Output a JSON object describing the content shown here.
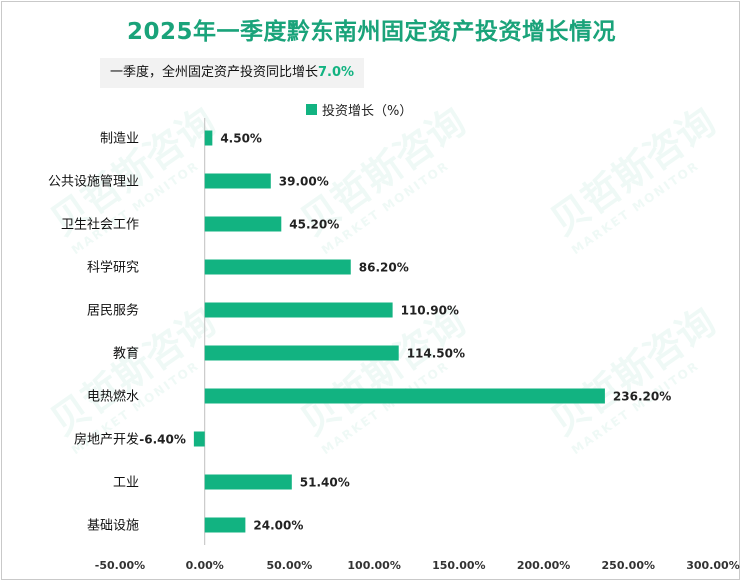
{
  "title": "2025年一季度黔东南州固定资产投资增长情况",
  "subtitle": {
    "prefix": "一季度，全州固定资产投资同比增长",
    "value": "7.0%"
  },
  "colors": {
    "bar": "#12b381",
    "title": "#1aa37a",
    "axis": "#bfbfbf"
  },
  "chart_data": {
    "type": "bar",
    "orientation": "horizontal",
    "title": "2025年一季度黔东南州固定资产投资增长情况",
    "legend": [
      "投资增长（%）"
    ],
    "legend_position": "top",
    "categories": [
      "制造业",
      "公共设施管理业",
      "卫生社会工作",
      "科学研究",
      "居民服务",
      "教育",
      "电热燃水",
      "房地产开发",
      "工业",
      "基础设施"
    ],
    "series": [
      {
        "name": "投资增长（%）",
        "values": [
          4.5,
          39.0,
          45.2,
          86.2,
          110.9,
          114.5,
          236.2,
          -6.4,
          51.4,
          24.0
        ],
        "labels": [
          "4.50%",
          "39.00%",
          "45.20%",
          "86.20%",
          "110.90%",
          "114.50%",
          "236.20%",
          "-6.40%",
          "51.40%",
          "24.00%"
        ]
      }
    ],
    "xlim": [
      -50,
      300
    ],
    "xticks": [
      -50,
      0,
      50,
      100,
      150,
      200,
      250,
      300
    ],
    "xtick_labels": [
      "-50.00%",
      "0.00%",
      "50.00%",
      "100.00%",
      "150.00%",
      "200.00%",
      "250.00%",
      "300.00%"
    ],
    "grid": false
  }
}
